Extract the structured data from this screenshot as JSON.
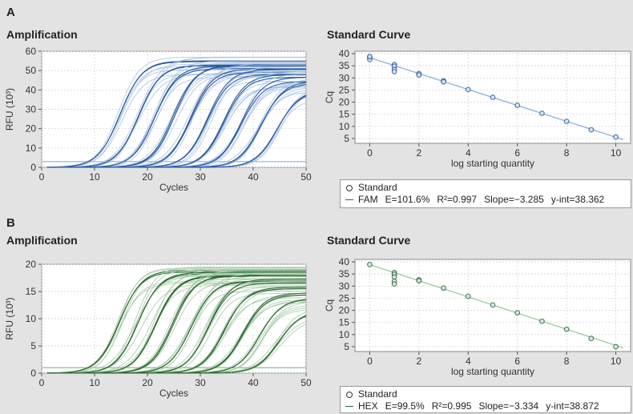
{
  "panels": {
    "a": {
      "letter": "A",
      "amp_title": "Amplification",
      "std_title": "Standard Curve"
    },
    "b": {
      "letter": "B",
      "amp_title": "Amplification",
      "std_title": "Standard Curve"
    }
  },
  "colors": {
    "fam_dark": "#2a5aa0",
    "fam_light": "#a9c3e3",
    "hex_dark": "#2d6a34",
    "hex_light": "#a5cba6",
    "fit_fam": "#8fb0dc",
    "fit_hex": "#9fc89f"
  },
  "legends": {
    "a": {
      "marker_label": "Standard",
      "fluor": "FAM",
      "efficiency": "E=101.6%",
      "r2": "R²=0.997",
      "slope": "Slope=−3.285",
      "yint": "y-int=38.362"
    },
    "b": {
      "marker_label": "Standard",
      "fluor": "HEX",
      "efficiency": "E=99.5%",
      "r2": "R²=0.995",
      "slope": "Slope=−3.334",
      "yint": "y-int=38.872"
    }
  },
  "chart_data": [
    {
      "id": "a-amp",
      "type": "line",
      "title": "Amplification",
      "xlabel": "Cycles",
      "ylabel": "RFU (10³)",
      "xlim": [
        0,
        50
      ],
      "ylim": [
        0,
        60
      ],
      "xticks": [
        0,
        10,
        20,
        30,
        40,
        50
      ],
      "yticks": [
        0,
        10,
        20,
        30,
        40,
        50,
        60
      ],
      "grid": true,
      "baseline": 3,
      "curve_clusters": [
        {
          "cq": 13.5,
          "plateau": 55
        },
        {
          "cq": 16.8,
          "plateau": 54
        },
        {
          "cq": 20.1,
          "plateau": 53
        },
        {
          "cq": 23.4,
          "plateau": 52
        },
        {
          "cq": 26.7,
          "plateau": 51
        },
        {
          "cq": 30.0,
          "plateau": 50
        },
        {
          "cq": 33.2,
          "plateau": 48
        },
        {
          "cq": 36.5,
          "plateau": 46
        },
        {
          "cq": 39.8,
          "plateau": 44
        },
        {
          "cq": 43.0,
          "plateau": 40
        }
      ]
    },
    {
      "id": "a-std",
      "type": "scatter",
      "title": "Standard Curve",
      "xlabel": "log starting quantity",
      "ylabel": "Cq",
      "xlim": [
        -0.6,
        10.6
      ],
      "ylim": [
        3,
        41
      ],
      "xticks": [
        0,
        2,
        4,
        6,
        8,
        10
      ],
      "yticks": [
        5,
        10,
        15,
        20,
        25,
        30,
        35,
        40
      ],
      "grid": true,
      "fit": {
        "slope": -3.285,
        "intercept": 38.362
      },
      "points": [
        {
          "x": 0,
          "y": 38.4
        },
        {
          "x": 0,
          "y": 37.6
        },
        {
          "x": 0,
          "y": 38.8
        },
        {
          "x": 1,
          "y": 35.5
        },
        {
          "x": 1,
          "y": 34.8
        },
        {
          "x": 1,
          "y": 33.5
        },
        {
          "x": 1,
          "y": 32.6
        },
        {
          "x": 2,
          "y": 31.8
        },
        {
          "x": 2,
          "y": 31.2
        },
        {
          "x": 3,
          "y": 28.8
        },
        {
          "x": 3,
          "y": 28.4
        },
        {
          "x": 4,
          "y": 25.2
        },
        {
          "x": 5,
          "y": 22.0
        },
        {
          "x": 6,
          "y": 18.7
        },
        {
          "x": 7,
          "y": 15.4
        },
        {
          "x": 8,
          "y": 12.1
        },
        {
          "x": 9,
          "y": 8.6
        },
        {
          "x": 10,
          "y": 5.6
        }
      ]
    },
    {
      "id": "b-amp",
      "type": "line",
      "title": "Amplification",
      "xlabel": "Cycles",
      "ylabel": "RFU (10³)",
      "xlim": [
        0,
        50
      ],
      "ylim": [
        0,
        20
      ],
      "xticks": [
        0,
        10,
        20,
        30,
        40,
        50
      ],
      "yticks": [
        0,
        5,
        10,
        15,
        20
      ],
      "grid": true,
      "baseline": 1,
      "curve_clusters": [
        {
          "cq": 13.4,
          "plateau": 19.0
        },
        {
          "cq": 16.7,
          "plateau": 18.7
        },
        {
          "cq": 20.0,
          "plateau": 18.4
        },
        {
          "cq": 23.3,
          "plateau": 18.0
        },
        {
          "cq": 26.6,
          "plateau": 17.5
        },
        {
          "cq": 29.9,
          "plateau": 17.0
        },
        {
          "cq": 33.2,
          "plateau": 16.0
        },
        {
          "cq": 36.5,
          "plateau": 15.0
        },
        {
          "cq": 39.8,
          "plateau": 13.5
        },
        {
          "cq": 43.1,
          "plateau": 11.5
        }
      ]
    },
    {
      "id": "b-std",
      "type": "scatter",
      "title": "Standard Curve",
      "xlabel": "log starting quantity",
      "ylabel": "Cq",
      "xlim": [
        -0.6,
        10.6
      ],
      "ylim": [
        3,
        41
      ],
      "xticks": [
        0,
        2,
        4,
        6,
        8,
        10
      ],
      "yticks": [
        5,
        10,
        15,
        20,
        25,
        30,
        35,
        40
      ],
      "grid": true,
      "fit": {
        "slope": -3.334,
        "intercept": 38.872
      },
      "points": [
        {
          "x": 0,
          "y": 38.9
        },
        {
          "x": 1,
          "y": 35.6
        },
        {
          "x": 1,
          "y": 34.9
        },
        {
          "x": 1,
          "y": 33.8
        },
        {
          "x": 1,
          "y": 32.0
        },
        {
          "x": 1,
          "y": 30.9
        },
        {
          "x": 2,
          "y": 32.6
        },
        {
          "x": 2,
          "y": 32.2
        },
        {
          "x": 3,
          "y": 29.2
        },
        {
          "x": 4,
          "y": 25.8
        },
        {
          "x": 5,
          "y": 22.2
        },
        {
          "x": 6,
          "y": 19.0
        },
        {
          "x": 7,
          "y": 15.5
        },
        {
          "x": 8,
          "y": 12.2
        },
        {
          "x": 9,
          "y": 8.4
        },
        {
          "x": 10,
          "y": 5.0
        }
      ]
    }
  ]
}
